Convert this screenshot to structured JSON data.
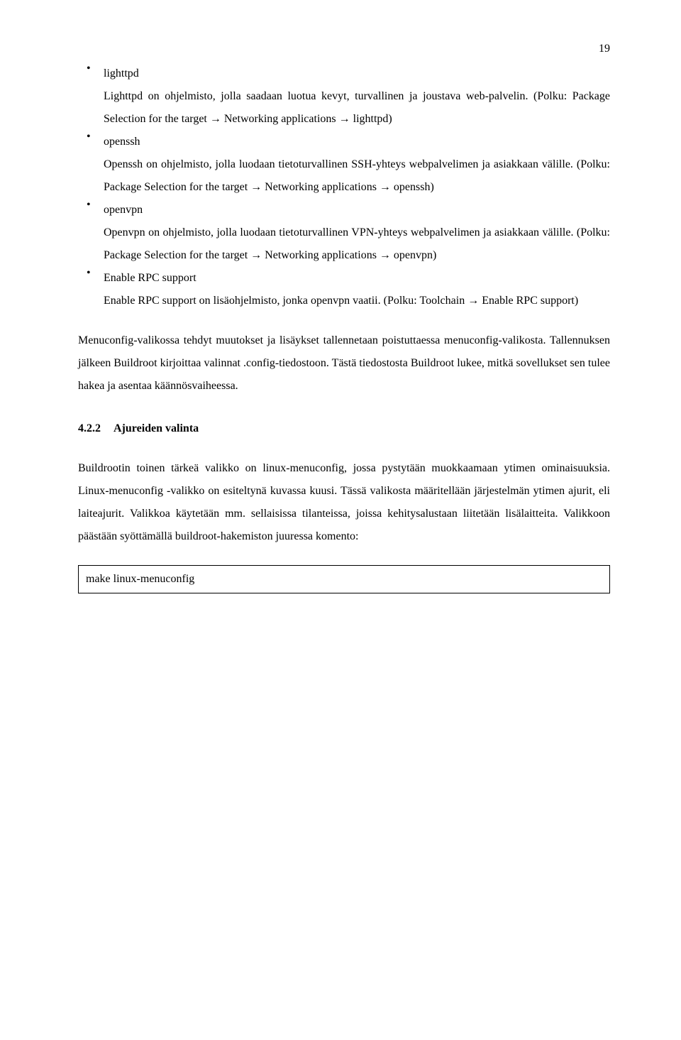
{
  "page_number": "19",
  "items": [
    {
      "title": "lighttpd",
      "body": "Lighttpd on ohjelmisto, jolla saadaan luotua kevyt, turvallinen ja joustava web-palvelin. (Polku: Package Selection for the target → Networking applications → lighttpd)"
    },
    {
      "title": "openssh",
      "body": "Openssh on ohjelmisto, jolla luodaan tietoturvallinen SSH-yhteys webpalvelimen ja asiakkaan välille. (Polku: Package Selection for the target → Networking applications → openssh)"
    },
    {
      "title": "openvpn",
      "body": "Openvpn on ohjelmisto, jolla luodaan tietoturvallinen VPN-yhteys webpalvelimen ja asiakkaan välille. (Polku: Package Selection for the target → Networking applications → openvpn)"
    },
    {
      "title": "Enable RPC support",
      "body": "Enable RPC support on lisäohjelmisto, jonka openvpn vaatii. (Polku: Toolchain → Enable RPC support)"
    }
  ],
  "paragraph1": "Menuconfig-valikossa tehdyt muutokset ja lisäykset tallennetaan poistuttaessa menuconfig-valikosta. Tallennuksen jälkeen Buildroot kirjoittaa valinnat .config-tiedostoon. Tästä tiedostosta Buildroot lukee, mitkä sovellukset sen tulee hakea ja asentaa käännösvaiheessa.",
  "section": {
    "number": "4.2.2",
    "title": "Ajureiden valinta"
  },
  "paragraph2": "Buildrootin toinen tärkeä valikko on linux-menuconfig, jossa pystytään muokkaamaan ytimen ominaisuuksia. Linux-menuconfig -valikko on esiteltynä kuvassa kuusi. Tässä valikosta määritellään järjestelmän ytimen ajurit, eli laiteajurit. Valikkoa käytetään mm. sellaisissa tilanteissa, joissa kehitysalustaan liitetään lisälaitteita. Valikkoon päästään syöttämällä buildroot-hakemiston juuressa komento:",
  "codebox": "make linux-menuconfig"
}
